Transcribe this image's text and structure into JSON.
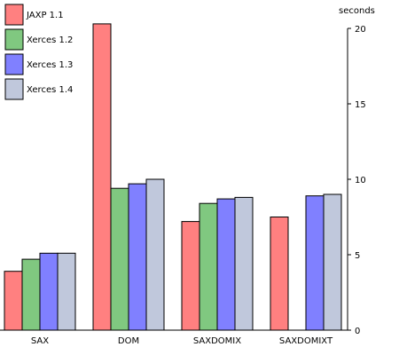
{
  "chart_data": {
    "type": "bar",
    "title": "",
    "xlabel": "",
    "ylabel": "seconds",
    "categories": [
      "SAX",
      "DOM",
      "SAXDOMIX",
      "SAXDOMIXT"
    ],
    "series": [
      {
        "name": "JAXP 1.1",
        "color": "#ff8080",
        "values": [
          3.9,
          20.3,
          7.2,
          7.5
        ]
      },
      {
        "name": "Xerces 1.2",
        "color": "#80c880",
        "values": [
          4.7,
          9.4,
          8.4,
          null
        ]
      },
      {
        "name": "Xerces 1.3",
        "color": "#8080ff",
        "values": [
          5.1,
          9.7,
          8.7,
          8.9
        ]
      },
      {
        "name": "Xerces 1.4",
        "color": "#c0c8dc",
        "values": [
          5.1,
          10.0,
          8.8,
          9.0
        ]
      }
    ],
    "ylim": [
      0,
      20
    ],
    "yticks": [
      "0",
      "5",
      "10",
      "15",
      "20"
    ],
    "legend": "top-left",
    "grid": false
  }
}
